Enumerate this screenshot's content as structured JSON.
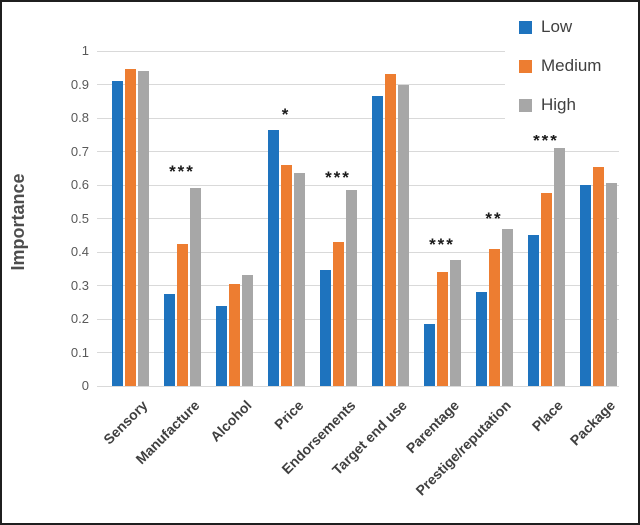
{
  "chart_data": {
    "type": "bar",
    "title": "",
    "xlabel": "",
    "ylabel": "Importance",
    "ylim": [
      0,
      1
    ],
    "yticks": [
      "0",
      "0.1",
      "0.2",
      "0.3",
      "0.4",
      "0.5",
      "0.6",
      "0.7",
      "0.8",
      "0.9",
      "1"
    ],
    "grid": true,
    "categories": [
      "Sensory",
      "Manufacture",
      "Alcohol",
      "Price",
      "Endorsements",
      "Target end use",
      "Parentage",
      "Prestige/reputation",
      "Place",
      "Package"
    ],
    "series": [
      {
        "name": "Low",
        "color": "#1e73be",
        "values": [
          0.91,
          0.275,
          0.24,
          0.765,
          0.345,
          0.865,
          0.185,
          0.28,
          0.45,
          0.6
        ]
      },
      {
        "name": "Medium",
        "color": "#ed7d31",
        "values": [
          0.945,
          0.425,
          0.305,
          0.66,
          0.43,
          0.93,
          0.34,
          0.41,
          0.575,
          0.655
        ]
      },
      {
        "name": "High",
        "color": "#a7a7a7",
        "values": [
          0.94,
          0.59,
          0.33,
          0.635,
          0.585,
          0.9,
          0.375,
          0.47,
          0.71,
          0.605
        ]
      }
    ],
    "significance_markers": [
      {
        "category": "Manufacture",
        "label": "***",
        "y": 0.64
      },
      {
        "category": "Price",
        "label": "*",
        "y": 0.81
      },
      {
        "category": "Endorsements",
        "label": "***",
        "y": 0.62
      },
      {
        "category": "Parentage",
        "label": "***",
        "y": 0.42
      },
      {
        "category": "Prestige/reputation",
        "label": "**",
        "y": 0.5
      },
      {
        "category": "Place",
        "label": "***",
        "y": 0.73
      }
    ],
    "legend": {
      "position": "top-right",
      "entries": [
        "Low",
        "Medium",
        "High"
      ]
    }
  }
}
